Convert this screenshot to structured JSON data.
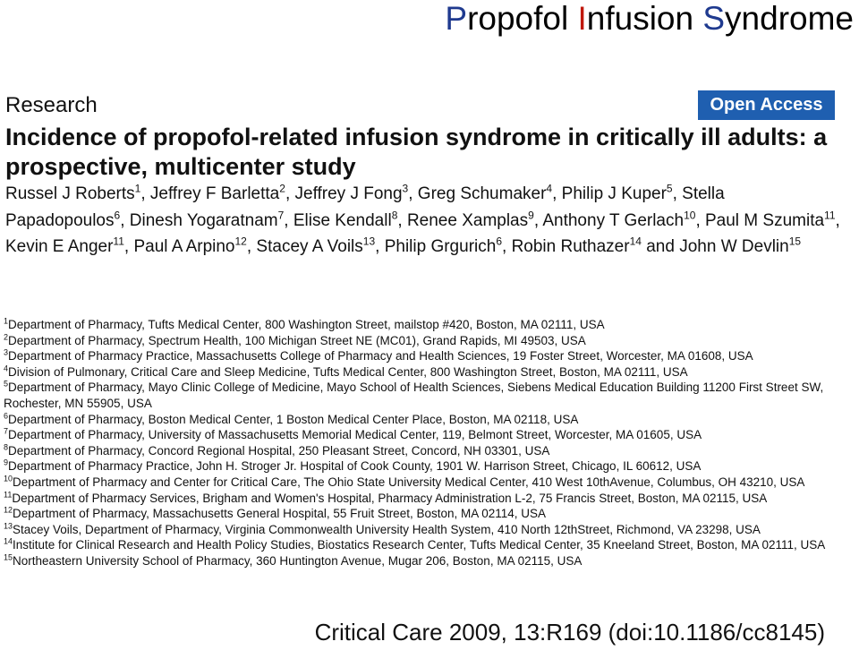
{
  "slide_title": {
    "words": [
      {
        "initial": "P",
        "rest": "ropofol",
        "initial_color": "#1f3a8f"
      },
      {
        "initial": "I",
        "rest": "nfusion",
        "initial_color": "#c0180c"
      },
      {
        "initial": "S",
        "rest": "yndrome",
        "initial_color": "#1f3a8f"
      }
    ]
  },
  "article": {
    "section_label": "Research",
    "badge": "Open Access",
    "badge_color": "#1f5fb0",
    "title": "Incidence of propofol-related infusion syndrome in critically ill adults: a prospective, multicenter study",
    "authors": [
      {
        "name": "Russel J Roberts",
        "aff": "1"
      },
      {
        "name": "Jeffrey F Barletta",
        "aff": "2"
      },
      {
        "name": "Jeffrey J Fong",
        "aff": "3"
      },
      {
        "name": "Greg Schumaker",
        "aff": "4"
      },
      {
        "name": "Philip J Kuper",
        "aff": "5"
      },
      {
        "name": "Stella Papadopoulos",
        "aff": "6"
      },
      {
        "name": "Dinesh Yogaratnam",
        "aff": "7"
      },
      {
        "name": "Elise Kendall",
        "aff": "8"
      },
      {
        "name": "Renee Xamplas",
        "aff": "9"
      },
      {
        "name": "Anthony T Gerlach",
        "aff": "10"
      },
      {
        "name": "Paul M Szumita",
        "aff": "11"
      },
      {
        "name": "Kevin E Anger",
        "aff": "11"
      },
      {
        "name": "Paul A Arpino",
        "aff": "12"
      },
      {
        "name": "Stacey A Voils",
        "aff": "13"
      },
      {
        "name": "Philip Grgurich",
        "aff": "6"
      },
      {
        "name": "Robin Ruthazer",
        "aff": "14"
      },
      {
        "name": "John W Devlin",
        "aff": "15"
      }
    ],
    "affiliations": [
      {
        "num": "1",
        "text": "Department of Pharmacy, Tufts Medical Center, 800 Washington Street, mailstop #420, Boston, MA 02111, USA"
      },
      {
        "num": "2",
        "text": "Department of Pharmacy, Spectrum Health, 100 Michigan Street NE (MC01), Grand Rapids, MI 49503, USA"
      },
      {
        "num": "3",
        "text": "Department of Pharmacy Practice, Massachusetts College of Pharmacy and Health Sciences, 19 Foster Street, Worcester, MA 01608, USA"
      },
      {
        "num": "4",
        "text": "Division of Pulmonary, Critical Care and Sleep Medicine, Tufts Medical Center, 800 Washington Street, Boston, MA 02111, USA"
      },
      {
        "num": "5",
        "text": "Department of Pharmacy, Mayo Clinic College of Medicine, Mayo School of Health Sciences, Siebens Medical Education Building 11200 First Street SW, Rochester, MN 55905, USA"
      },
      {
        "num": "6",
        "text": "Department of Pharmacy, Boston Medical Center, 1 Boston Medical Center Place, Boston, MA 02118, USA"
      },
      {
        "num": "7",
        "text": "Department of Pharmacy, University of Massachusetts Memorial Medical Center, 119, Belmont Street, Worcester, MA 01605, USA"
      },
      {
        "num": "8",
        "text": "Department of Pharmacy, Concord Regional Hospital, 250 Pleasant Street, Concord, NH 03301, USA"
      },
      {
        "num": "9",
        "text": "Department of Pharmacy Practice, John H. Stroger Jr. Hospital of Cook County, 1901 W. Harrison Street, Chicago, IL 60612, USA"
      },
      {
        "num": "10",
        "text": "Department of Pharmacy and Center for Critical Care, The Ohio State University Medical Center, 410 West 10thAvenue, Columbus, OH 43210, USA"
      },
      {
        "num": "11",
        "text": "Department of Pharmacy Services, Brigham and Women's Hospital, Pharmacy Administration L-2, 75 Francis Street, Boston, MA 02115, USA"
      },
      {
        "num": "12",
        "text": "Department of Pharmacy, Massachusetts General Hospital, 55 Fruit Street, Boston, MA 02114, USA"
      },
      {
        "num": "13",
        "text": "Stacey Voils, Department of Pharmacy, Virginia Commonwealth University Health System, 410 North 12thStreet, Richmond, VA 23298, USA"
      },
      {
        "num": "14",
        "text": "Institute for Clinical Research and Health Policy Studies, Biostatics Research Center, Tufts Medical Center, 35 Kneeland Street, Boston, MA 02111, USA"
      },
      {
        "num": "15",
        "text": "Northeastern University School of Pharmacy, 360 Huntington Avenue, Mugar 206, Boston, MA 02115, USA"
      }
    ],
    "citation": "Critical Care 2009, 13:R169 (doi:10.1186/cc8145)"
  }
}
